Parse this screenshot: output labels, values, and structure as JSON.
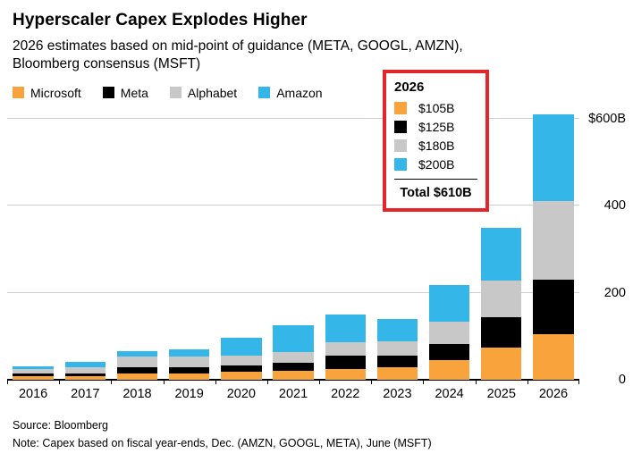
{
  "header": {
    "title": "Hyperscaler Capex Explodes Higher",
    "subtitle_line1": "2026 estimates based on mid-point of guidance (META, GOOGL, AMZN),",
    "subtitle_line2": "Bloomberg consensus (MSFT)"
  },
  "legend": {
    "items": [
      {
        "label": "Microsoft",
        "color": "#F8A33B"
      },
      {
        "label": "Meta",
        "color": "#000000"
      },
      {
        "label": "Alphabet",
        "color": "#C8C8C8"
      },
      {
        "label": "Amazon",
        "color": "#35B6E9"
      }
    ]
  },
  "callout": {
    "year": "2026",
    "border_color": "#E2262C",
    "rows": [
      {
        "name": "Microsoft",
        "color": "#F8A33B",
        "value": "$105B"
      },
      {
        "name": "Meta",
        "color": "#000000",
        "value": "$125B"
      },
      {
        "name": "Alphabet",
        "color": "#C8C8C8",
        "value": "$180B"
      },
      {
        "name": "Amazon",
        "color": "#35B6E9",
        "value": "$200B"
      }
    ],
    "total_label": "Total $610B"
  },
  "chart_data": {
    "type": "bar",
    "stacked": true,
    "title": "Hyperscaler Capex Explodes Higher",
    "categories": [
      "2016",
      "2017",
      "2018",
      "2019",
      "2020",
      "2021",
      "2022",
      "2023",
      "2024",
      "2025",
      "2026"
    ],
    "series": [
      {
        "name": "Microsoft",
        "color": "#F8A33B",
        "values": [
          9,
          8.7,
          14.2,
          13.9,
          17.6,
          20.6,
          23.9,
          28.1,
          44.5,
          75,
          105
        ]
      },
      {
        "name": "Meta",
        "color": "#000000",
        "values": [
          4.5,
          6.7,
          13.9,
          15.1,
          15.7,
          18.6,
          31.4,
          27.3,
          37.3,
          68,
          125
        ]
      },
      {
        "name": "Alphabet",
        "color": "#C8C8C8",
        "values": [
          10.2,
          13.2,
          25.1,
          23.5,
          22.3,
          24.6,
          31.5,
          32.3,
          52.5,
          85,
          180
        ]
      },
      {
        "name": "Amazon",
        "color": "#35B6E9",
        "values": [
          6.7,
          12,
          13.4,
          16.9,
          40.1,
          61.1,
          63.6,
          52.7,
          83,
          122,
          200
        ]
      }
    ],
    "ylim": [
      0,
      600
    ],
    "yticks": [
      0,
      200,
      400,
      600
    ],
    "ytick_labels": [
      "0",
      "200",
      "400",
      "$600B"
    ],
    "y_axis_side": "right",
    "grid": true,
    "legend_position": "top-left",
    "units": "billions USD"
  },
  "footer": {
    "source": "Source: Bloomberg",
    "note": "Note: Capex based on fiscal year-ends, Dec. (AMZN, GOOGL, META), June (MSFT)"
  }
}
